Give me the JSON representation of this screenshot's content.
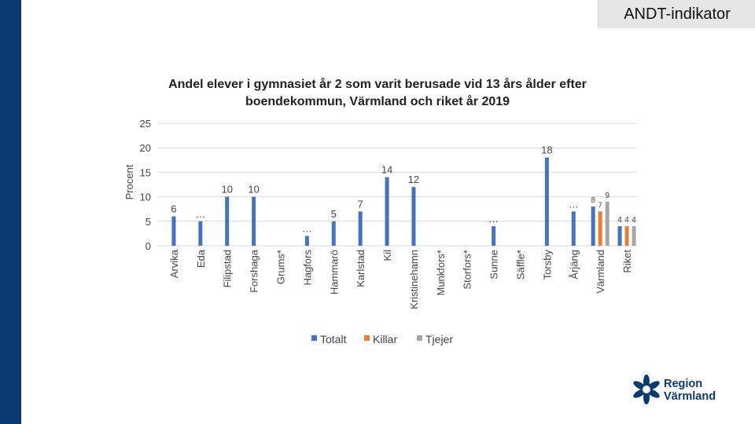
{
  "header": {
    "tag": "ANDT-indikator"
  },
  "chart_data": {
    "type": "bar",
    "title": "Andel elever i gymnasiet år 2 som varit berusade vid 13 års ålder efter boendekommun, Värmland och riket år 2019",
    "ylabel": "Procent",
    "xlabel": "",
    "ylim": [
      0,
      25
    ],
    "yticks": [
      "0",
      "5",
      "10",
      "15",
      "20",
      "25"
    ],
    "grid": true,
    "legend_position": "bottom",
    "categories": [
      "Arvika",
      "Eda",
      "Filipstad",
      "Forshaga",
      "Grums*",
      "Hagfors",
      "Hammarö",
      "Karlstad",
      "Kil",
      "Kristinehamn",
      "Munkfors*",
      "Storfors*",
      "Sunne",
      "Säffle*",
      "Torsby",
      "Årjäng",
      "Värmland",
      "Riket"
    ],
    "series": [
      {
        "name": "Totalt",
        "color": "#4472c4",
        "values": [
          6,
          5,
          10,
          10,
          null,
          2,
          5,
          7,
          14,
          12,
          null,
          null,
          4,
          null,
          18,
          7,
          8,
          4
        ],
        "labels": [
          "6",
          "…",
          "10",
          "10",
          "",
          "…",
          "5",
          "7",
          "14",
          "12",
          "",
          "",
          "…",
          "",
          "18",
          "…",
          "8",
          "4"
        ]
      },
      {
        "name": "Killar",
        "color": "#ed7d31",
        "values": [
          null,
          null,
          null,
          null,
          null,
          null,
          null,
          null,
          null,
          null,
          null,
          null,
          null,
          null,
          null,
          null,
          7,
          4
        ],
        "labels": [
          "",
          "",
          "",
          "",
          "",
          "",
          "",
          "",
          "",
          "",
          "",
          "",
          "",
          "",
          "",
          "",
          "7",
          "4"
        ]
      },
      {
        "name": "Tjejer",
        "color": "#a5a5a5",
        "values": [
          null,
          null,
          null,
          null,
          null,
          null,
          null,
          null,
          null,
          null,
          null,
          null,
          null,
          null,
          null,
          null,
          9,
          4
        ],
        "labels": [
          "",
          "",
          "",
          "",
          "",
          "",
          "",
          "",
          "",
          "",
          "",
          "",
          "",
          "",
          "",
          "",
          "9",
          "4"
        ]
      }
    ]
  },
  "logo": {
    "line1": "Region",
    "line2": "Värmland"
  }
}
